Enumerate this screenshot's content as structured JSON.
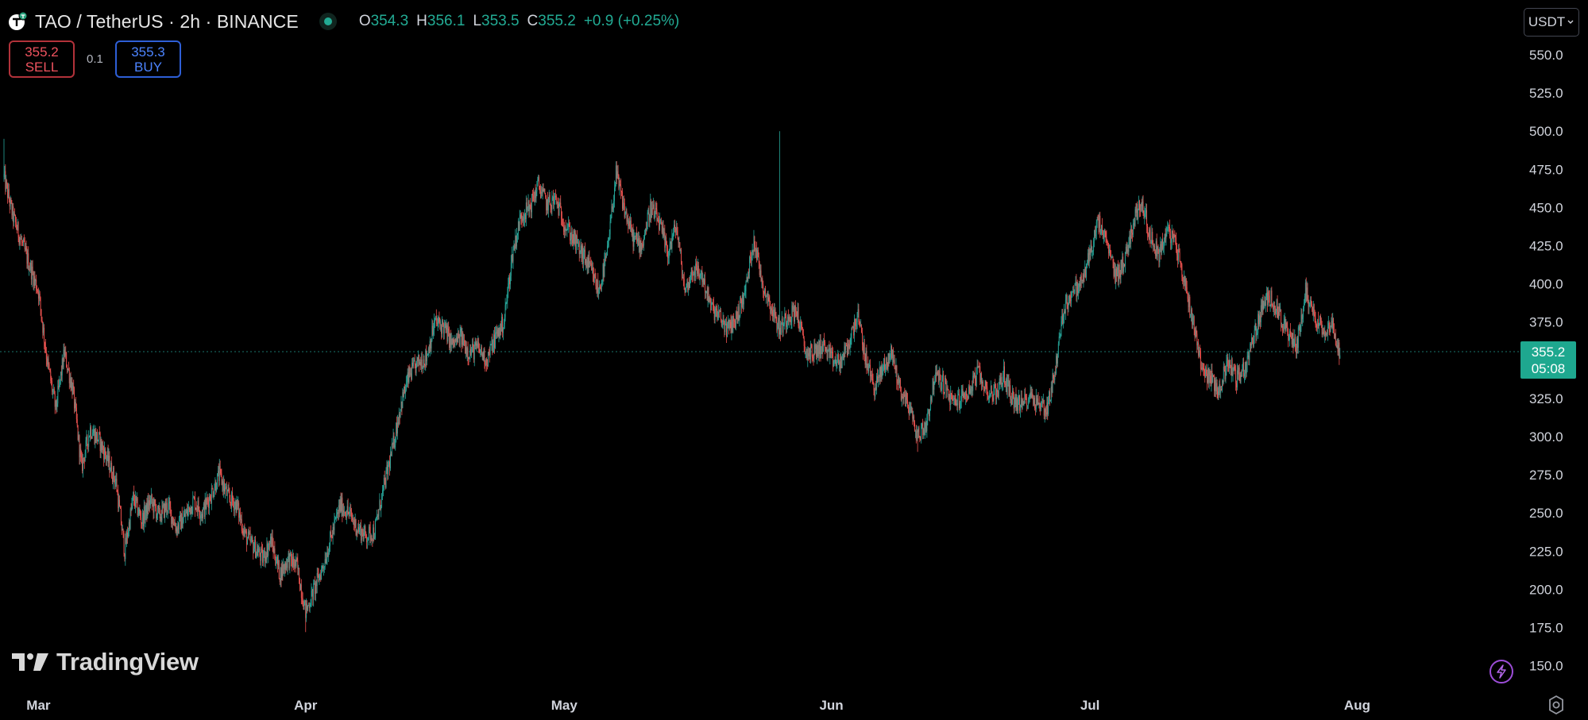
{
  "header": {
    "symbol_title": "TAO / TetherUS · 2h · BINANCE",
    "ohlc": [
      {
        "key": "O",
        "value": "354.3"
      },
      {
        "key": "H",
        "value": "356.1"
      },
      {
        "key": "L",
        "value": "353.5"
      },
      {
        "key": "C",
        "value": "355.2"
      }
    ],
    "change": "+0.9 (+0.25%)"
  },
  "trade": {
    "sell_price": "355.2",
    "sell_label": "SELL",
    "spread": "0.1",
    "buy_price": "355.3",
    "buy_label": "BUY"
  },
  "currency_label": "USDT",
  "last_price": {
    "price": "355.2",
    "countdown": "05:08"
  },
  "watermark": "TradingView",
  "colors": {
    "up": "#26a69a",
    "down": "#ef5350",
    "background": "#000000",
    "accent": "#1ea88f"
  },
  "icons": {
    "logo": "tao-logo-icon",
    "live": "live-dot-icon",
    "bolt": "lightning-icon",
    "settings": "gear-icon"
  },
  "chart_data": {
    "type": "candlestick",
    "interval": "2h",
    "y_ticks": [
      "550.0",
      "525.0",
      "500.0",
      "475.0",
      "450.0",
      "425.0",
      "400.0",
      "375.0",
      "350.0",
      "325.0",
      "300.0",
      "275.0",
      "250.0",
      "225.0",
      "200.0",
      "175.0",
      "150.0"
    ],
    "y_range": [
      150,
      550
    ],
    "x_ticks": [
      "Mar",
      "Apr",
      "May",
      "Jun",
      "Jul",
      "Aug"
    ],
    "last_value": 355.2,
    "close_path": [
      [
        "Feb 26",
        470
      ],
      [
        "Feb 27",
        445
      ],
      [
        "Feb 28",
        428
      ],
      [
        "Mar 1",
        395
      ],
      [
        "Mar 2",
        350
      ],
      [
        "Mar 3",
        318
      ],
      [
        "Mar 4",
        355
      ],
      [
        "Mar 5",
        330
      ],
      [
        "Mar 6",
        280
      ],
      [
        "Mar 7",
        305
      ],
      [
        "Mar 8",
        298
      ],
      [
        "Mar 9",
        285
      ],
      [
        "Mar 10",
        270
      ],
      [
        "Mar 11",
        225
      ],
      [
        "Mar 12",
        260
      ],
      [
        "Mar 13",
        245
      ],
      [
        "Mar 14",
        258
      ],
      [
        "Mar 15",
        248
      ],
      [
        "Mar 16",
        255
      ],
      [
        "Mar 17",
        240
      ],
      [
        "Mar 18",
        248
      ],
      [
        "Mar 19",
        258
      ],
      [
        "Mar 20",
        250
      ],
      [
        "Mar 21",
        262
      ],
      [
        "Mar 22",
        275
      ],
      [
        "Mar 23",
        260
      ],
      [
        "Mar 24",
        255
      ],
      [
        "Mar 25",
        235
      ],
      [
        "Mar 26",
        228
      ],
      [
        "Mar 27",
        220
      ],
      [
        "Mar 28",
        232
      ],
      [
        "Mar 29",
        210
      ],
      [
        "Mar 30",
        220
      ],
      [
        "Mar 31",
        215
      ],
      [
        "Apr 1",
        185
      ],
      [
        "Apr 2",
        200
      ],
      [
        "Apr 3",
        215
      ],
      [
        "Apr 4",
        235
      ],
      [
        "Apr 5",
        255
      ],
      [
        "Apr 6",
        250
      ],
      [
        "Apr 7",
        240
      ],
      [
        "Apr 8",
        235
      ],
      [
        "Apr 9",
        238
      ],
      [
        "Apr 10",
        265
      ],
      [
        "Apr 11",
        290
      ],
      [
        "Apr 12",
        320
      ],
      [
        "Apr 13",
        340
      ],
      [
        "Apr 14",
        348
      ],
      [
        "Apr 15",
        352
      ],
      [
        "Apr 16",
        375
      ],
      [
        "Apr 17",
        372
      ],
      [
        "Apr 18",
        360
      ],
      [
        "Apr 19",
        365
      ],
      [
        "Apr 20",
        355
      ],
      [
        "Apr 21",
        358
      ],
      [
        "Apr 22",
        350
      ],
      [
        "Apr 23",
        365
      ],
      [
        "Apr 24",
        375
      ],
      [
        "Apr 25",
        420
      ],
      [
        "Apr 26",
        445
      ],
      [
        "Apr 27",
        450
      ],
      [
        "Apr 28",
        465
      ],
      [
        "Apr 29",
        452
      ],
      [
        "Apr 30",
        455
      ],
      [
        "May 1",
        440
      ],
      [
        "May 2",
        430
      ],
      [
        "May 3",
        420
      ],
      [
        "May 4",
        410
      ],
      [
        "May 5",
        395
      ],
      [
        "May 6",
        420
      ],
      [
        "May 7",
        472
      ],
      [
        "May 8",
        448
      ],
      [
        "May 9",
        430
      ],
      [
        "May 10",
        425
      ],
      [
        "May 11",
        450
      ],
      [
        "May 12",
        440
      ],
      [
        "May 13",
        420
      ],
      [
        "May 14",
        438
      ],
      [
        "May 15",
        395
      ],
      [
        "May 16",
        410
      ],
      [
        "May 17",
        405
      ],
      [
        "May 18",
        385
      ],
      [
        "May 19",
        378
      ],
      [
        "May 20",
        370
      ],
      [
        "May 21",
        378
      ],
      [
        "May 22",
        395
      ],
      [
        "May 23",
        430
      ],
      [
        "May 24",
        400
      ],
      [
        "May 25",
        385
      ],
      [
        "May 26",
        370
      ],
      [
        "May 27",
        380
      ],
      [
        "May 28",
        382
      ],
      [
        "May 29",
        355
      ],
      [
        "May 30",
        355
      ],
      [
        "May 31",
        360
      ],
      [
        "Jun 1",
        350
      ],
      [
        "Jun 2",
        348
      ],
      [
        "Jun 3",
        360
      ],
      [
        "Jun 4",
        380
      ],
      [
        "Jun 5",
        350
      ],
      [
        "Jun 6",
        332
      ],
      [
        "Jun 7",
        345
      ],
      [
        "Jun 8",
        355
      ],
      [
        "Jun 9",
        330
      ],
      [
        "Jun 10",
        320
      ],
      [
        "Jun 11",
        300
      ],
      [
        "Jun 12",
        308
      ],
      [
        "Jun 13",
        340
      ],
      [
        "Jun 14",
        335
      ],
      [
        "Jun 15",
        322
      ],
      [
        "Jun 16",
        325
      ],
      [
        "Jun 17",
        330
      ],
      [
        "Jun 18",
        342
      ],
      [
        "Jun 19",
        330
      ],
      [
        "Jun 20",
        328
      ],
      [
        "Jun 21",
        340
      ],
      [
        "Jun 22",
        325
      ],
      [
        "Jun 23",
        320
      ],
      [
        "Jun 24",
        328
      ],
      [
        "Jun 25",
        322
      ],
      [
        "Jun 26",
        318
      ],
      [
        "Jun 27",
        345
      ],
      [
        "Jun 28",
        385
      ],
      [
        "Jun 29",
        395
      ],
      [
        "Jun 30",
        400
      ],
      [
        "Jul 1",
        420
      ],
      [
        "Jul 2",
        440
      ],
      [
        "Jul 3",
        425
      ],
      [
        "Jul 4",
        405
      ],
      [
        "Jul 5",
        415
      ],
      [
        "Jul 6",
        440
      ],
      [
        "Jul 7",
        455
      ],
      [
        "Jul 8",
        430
      ],
      [
        "Jul 9",
        420
      ],
      [
        "Jul 10",
        435
      ],
      [
        "Jul 11",
        425
      ],
      [
        "Jul 12",
        400
      ],
      [
        "Jul 13",
        375
      ],
      [
        "Jul 14",
        345
      ],
      [
        "Jul 15",
        338
      ],
      [
        "Jul 16",
        330
      ],
      [
        "Jul 17",
        350
      ],
      [
        "Jul 18",
        338
      ],
      [
        "Jul 19",
        345
      ],
      [
        "Jul 20",
        365
      ],
      [
        "Jul 21",
        385
      ],
      [
        "Jul 22",
        392
      ],
      [
        "Jul 23",
        380
      ],
      [
        "Jul 24",
        365
      ],
      [
        "Jul 25",
        360
      ],
      [
        "Jul 26",
        395
      ],
      [
        "Jul 27",
        380
      ],
      [
        "Jul 28",
        370
      ],
      [
        "Jul 29",
        375
      ],
      [
        "Jul 30",
        355
      ]
    ],
    "extreme_wicks": [
      {
        "date": "Feb 26",
        "high": 495
      },
      {
        "date": "May 26",
        "high": 500
      },
      {
        "date": "Apr 1",
        "low": 172
      },
      {
        "date": "Jun 11",
        "low": 290
      }
    ]
  }
}
